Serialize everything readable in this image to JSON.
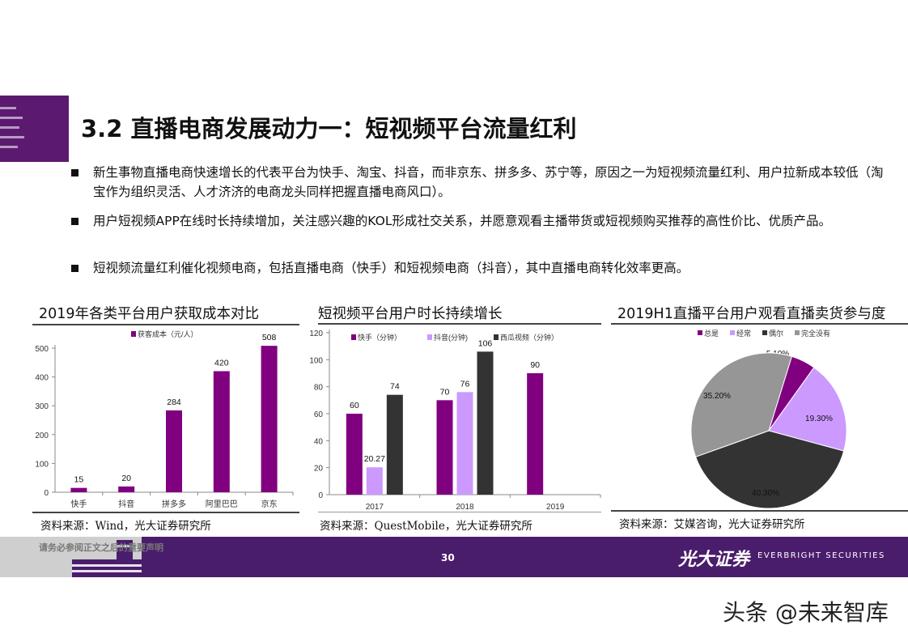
{
  "slide": {
    "title": "3.2 直播电商发展动力一：短视频平台流量红利",
    "bullets": [
      "新生事物直播电商快速增长的代表平台为快手、淘宝、抖音，而非京东、拼多多、苏宁等，原因之一为短视频流量红利、用户拉新成本较低（淘宝作为组织灵活、人才济济的电商龙头同样把握直播电商风口）。",
      "用户短视频APP在线时长持续增加，关注感兴趣的KOL形成社交关系，并愿意观看主播带货或短视频购买推荐的高性价比、优质产品。",
      "短视频流量红利催化视频电商，包括直播电商（快手）和短视频电商（抖音），其中直播电商转化效率更高。"
    ],
    "footer": {
      "note": "请务必参阅正文之后的重要声明",
      "page": "30",
      "logo_cn": "光大证券",
      "logo_en": "EVERBRIGHT SECURITIES"
    },
    "watermark": "头条 @未来智库",
    "colors": {
      "brand": "#4a1d6c",
      "purple": "#800080",
      "lilac": "#cc99ff",
      "dark": "#333333",
      "gray": "#969696"
    }
  },
  "chart_data": [
    {
      "type": "bar",
      "title": "2019年各类平台用户获取成本对比",
      "categories": [
        "快手",
        "抖音",
        "拼多多",
        "阿里巴巴",
        "京东"
      ],
      "series": [
        {
          "name": "获客成本（元/人）",
          "values": [
            15,
            20,
            284,
            420,
            508
          ],
          "color": "#800080"
        }
      ],
      "ylim": [
        0,
        500
      ],
      "yticks": [
        0,
        100,
        200,
        300,
        400,
        500
      ],
      "legend": "top",
      "grid": false,
      "source": "资料来源：Wind，光大证券研究所"
    },
    {
      "type": "bar",
      "title": "短视频平台用户时长持续增长",
      "categories": [
        "2017",
        "2018",
        "2019"
      ],
      "series": [
        {
          "name": "快手（分钟）",
          "values": [
            60,
            70,
            90
          ],
          "color": "#800080"
        },
        {
          "name": "抖音(分钟)",
          "values": [
            20.27,
            76,
            null
          ],
          "color": "#cc99ff"
        },
        {
          "name": "西瓜视频（分钟）",
          "values": [
            74,
            106,
            null
          ],
          "color": "#333333"
        }
      ],
      "ylim": [
        0,
        120
      ],
      "yticks": [
        0,
        20,
        40,
        60,
        80,
        100,
        120
      ],
      "legend": "top",
      "grid": false,
      "source": "资料来源：QuestMobile，光大证券研究所"
    },
    {
      "type": "pie",
      "title": "2019H1直播平台用户观看直播卖货参与度",
      "slices": [
        {
          "name": "总是",
          "value": 5.1,
          "label": "5.10%",
          "color": "#800080"
        },
        {
          "name": "经常",
          "value": 19.3,
          "label": "19.30%",
          "color": "#cc99ff"
        },
        {
          "name": "偶尔",
          "value": 40.3,
          "label": "40.30%",
          "color": "#333333"
        },
        {
          "name": "完全没有",
          "value": 35.2,
          "label": "35.20%",
          "color": "#969696"
        }
      ],
      "legend": "top",
      "source": "资料来源：艾媒咨询，光大证券研究所"
    }
  ]
}
